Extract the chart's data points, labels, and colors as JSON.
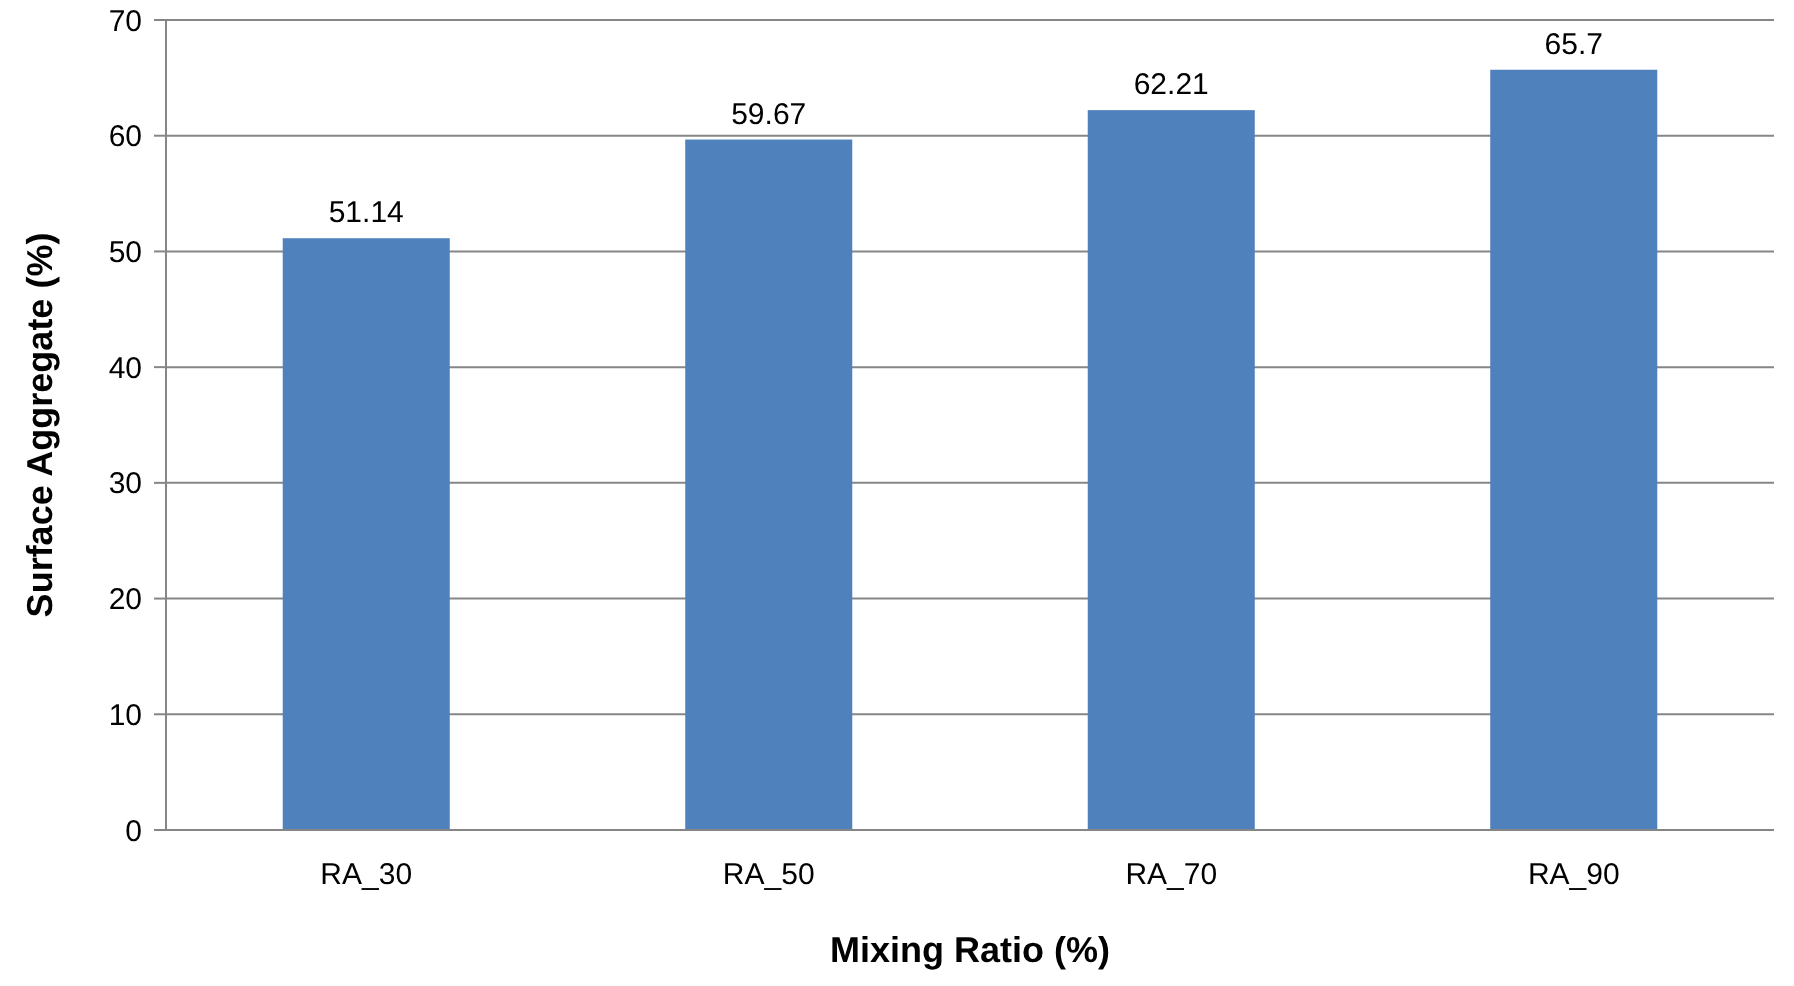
{
  "chart_data": {
    "type": "bar",
    "xlabel": "Mixing Ratio (%)",
    "ylabel": "Surface Aggregate (%)",
    "categories": [
      "RA_30",
      "RA_50",
      "RA_70",
      "RA_90"
    ],
    "values": [
      51.14,
      59.67,
      62.21,
      65.7
    ],
    "color": "#4f81bd",
    "ylim": [
      0,
      70
    ],
    "yticks": [
      0,
      10,
      20,
      30,
      40,
      50,
      60,
      70
    ],
    "grid": "y",
    "data_labels": true
  }
}
